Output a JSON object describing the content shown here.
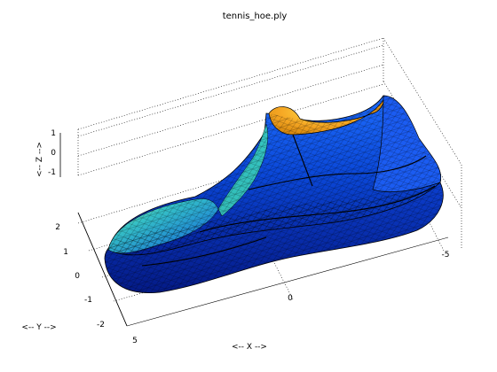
{
  "chart_data": {
    "type": "surface",
    "title": "tennis_hoe.ply",
    "xlabel": "<-- X -->",
    "ylabel": "<-- Y -->",
    "zlabel": "<-- Z -->",
    "x_ticks": [
      "5",
      "0",
      "-5"
    ],
    "y_ticks": [
      "2",
      "1",
      "0",
      "-1",
      "-2"
    ],
    "z_ticks": [
      "1",
      "0",
      "-1"
    ],
    "xlim": [
      -6,
      6
    ],
    "ylim": [
      -2.5,
      2.5
    ],
    "zlim": [
      -1.5,
      1.5
    ],
    "grid": true,
    "colormap": "jet",
    "edge_color": "#000000"
  }
}
